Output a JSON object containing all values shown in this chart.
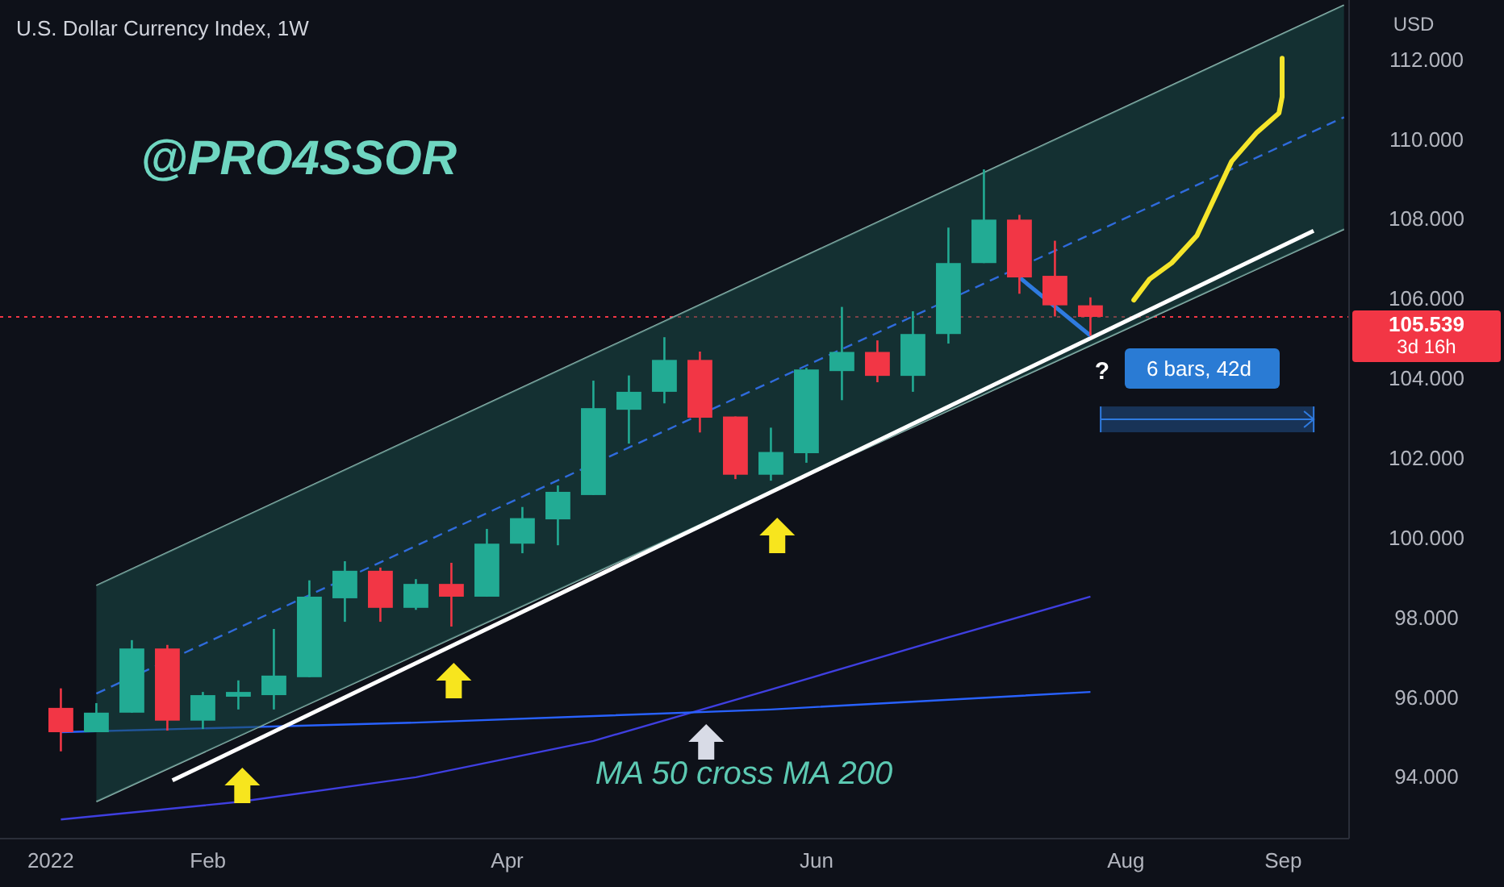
{
  "chart_data": {
    "type": "candlestick",
    "title": "U.S. Dollar Currency Index, 1W",
    "ylabel": "USD",
    "x": [
      "2022-01-03",
      "2022-01-10",
      "2022-01-17",
      "2022-01-24",
      "2022-01-31",
      "2022-02-07",
      "2022-02-14",
      "2022-02-21",
      "2022-02-28",
      "2022-03-07",
      "2022-03-14",
      "2022-03-21",
      "2022-03-28",
      "2022-04-04",
      "2022-04-11",
      "2022-04-18",
      "2022-04-25",
      "2022-05-02",
      "2022-05-09",
      "2022-05-16",
      "2022-05-23",
      "2022-05-30",
      "2022-06-06",
      "2022-06-13",
      "2022-06-20",
      "2022-06-27",
      "2022-07-04",
      "2022-07-11",
      "2022-07-18",
      "2022-07-25"
    ],
    "ohlc": [
      [
        95.73,
        96.22,
        94.64,
        95.12
      ],
      [
        95.12,
        95.85,
        95.12,
        95.61
      ],
      [
        95.61,
        97.43,
        95.61,
        97.22
      ],
      [
        97.22,
        97.31,
        95.16,
        95.41
      ],
      [
        95.41,
        96.13,
        95.2,
        96.05
      ],
      [
        96.01,
        96.42,
        95.69,
        96.13
      ],
      [
        96.05,
        97.71,
        95.69,
        96.54
      ],
      [
        96.5,
        98.93,
        96.5,
        98.52
      ],
      [
        98.48,
        99.41,
        97.89,
        99.17
      ],
      [
        99.17,
        99.25,
        97.89,
        98.24
      ],
      [
        98.24,
        98.96,
        98.19,
        98.84
      ],
      [
        98.84,
        99.37,
        97.77,
        98.52
      ],
      [
        98.52,
        100.22,
        98.52,
        99.85
      ],
      [
        99.85,
        100.77,
        99.61,
        100.49
      ],
      [
        100.46,
        101.31,
        99.81,
        101.15
      ],
      [
        101.07,
        103.94,
        101.07,
        103.25
      ],
      [
        103.21,
        104.07,
        102.36,
        103.66
      ],
      [
        103.66,
        105.03,
        103.37,
        104.46
      ],
      [
        104.46,
        104.67,
        102.64,
        103.01
      ],
      [
        103.04,
        103.04,
        101.47,
        101.58
      ],
      [
        101.58,
        102.76,
        101.43,
        102.15
      ],
      [
        102.12,
        104.26,
        101.88,
        104.22
      ],
      [
        104.18,
        105.79,
        103.45,
        104.66
      ],
      [
        104.66,
        104.95,
        103.9,
        104.06
      ],
      [
        104.06,
        105.68,
        103.66,
        105.11
      ],
      [
        105.11,
        107.78,
        104.87,
        106.89
      ],
      [
        106.89,
        109.24,
        106.89,
        107.98
      ],
      [
        107.98,
        108.1,
        106.12,
        106.53
      ],
      [
        106.57,
        107.45,
        105.55,
        105.83
      ],
      [
        105.83,
        106.03,
        105.07,
        105.539
      ]
    ],
    "colors": [
      "#f23645",
      "#22ab94",
      "#22ab94",
      "#f23645",
      "#22ab94",
      "#22ab94",
      "#22ab94",
      "#22ab94",
      "#22ab94",
      "#f23645",
      "#22ab94",
      "#f23645",
      "#22ab94",
      "#22ab94",
      "#22ab94",
      "#22ab94",
      "#22ab94",
      "#22ab94",
      "#f23645",
      "#f23645",
      "#22ab94",
      "#22ab94",
      "#22ab94",
      "#f23645",
      "#22ab94",
      "#22ab94",
      "#22ab94",
      "#f23645",
      "#f23645",
      "#f23645"
    ],
    "series": [
      {
        "type": "line",
        "color": "#3f3fe0",
        "x": [
          "2022-01-03",
          "2022-02-07",
          "2022-03-14",
          "2022-04-18",
          "2022-05-23",
          "2022-06-27",
          "2022-07-25"
        ],
        "values": [
          92.93,
          93.37,
          93.99,
          94.9,
          96.19,
          97.5,
          98.52
        ]
      },
      {
        "type": "line",
        "color": "#2962ff",
        "x": [
          "2022-01-03",
          "2022-03-14",
          "2022-05-23",
          "2022-07-25"
        ],
        "values": [
          95.12,
          95.36,
          95.69,
          96.13
        ]
      },
      {
        "type": "line",
        "color": "#8fb7b0",
        "x": [
          "2022-01-10",
          "2022-09-13"
        ],
        "values": [
          98.8,
          113.36
        ]
      },
      {
        "type": "line",
        "color": "#8fb7b0",
        "x": [
          "2022-01-10",
          "2022-09-13"
        ],
        "values": [
          93.38,
          107.74
        ]
      },
      {
        "type": "line",
        "color": "#2f6bdc",
        "line_style": "dashed",
        "x": [
          "2022-01-10",
          "2022-09-13"
        ],
        "values": [
          96.09,
          110.55
        ],
        "lower": [
          93.38,
          107.74
        ],
        "upper": [
          98.8,
          113.36
        ]
      },
      {
        "type": "line",
        "color": "#ffffff",
        "x": [
          "2022-01-25",
          "2022-09-07"
        ],
        "values": [
          93.91,
          107.7
        ]
      },
      {
        "type": "line",
        "color": "#2f7be0",
        "x": [
          "2022-07-11",
          "2022-07-25"
        ],
        "values": [
          106.53,
          105.07
        ]
      }
    ],
    "xlim": [
      "2021-12-22",
      "2022-09-14"
    ],
    "xticks": [
      {
        "value": "2022-01-01",
        "label": "2022"
      },
      {
        "value": "2022-02-01",
        "label": "Feb"
      },
      {
        "value": "2022-04-01",
        "label": "Apr"
      },
      {
        "value": "2022-06-01",
        "label": "Jun"
      },
      {
        "value": "2022-08-01",
        "label": "Aug"
      },
      {
        "value": "2022-09-01",
        "label": "Sep"
      }
    ],
    "ylim": [
      92.45,
      113.49
    ],
    "yticks": [
      {
        "value": 94,
        "label": "94.000"
      },
      {
        "value": 96,
        "label": "96.000"
      },
      {
        "value": 98,
        "label": "98.000"
      },
      {
        "value": 100,
        "label": "100.000"
      },
      {
        "value": 102,
        "label": "102.000"
      },
      {
        "value": 104,
        "label": "104.000"
      },
      {
        "value": 106,
        "label": "106.000"
      },
      {
        "value": 108,
        "label": "108.000"
      },
      {
        "value": 110,
        "label": "110.000"
      },
      {
        "value": 112,
        "label": "112.000"
      }
    ],
    "ref_lines": [
      {
        "axis": "y",
        "value": 105.539,
        "label": "105.539",
        "color": "#f23645",
        "line_style": "dotted"
      }
    ],
    "annotations": [
      "@PRO4SSOR",
      "MA 50 cross MA 200",
      "?",
      "6 bars, 42d",
      "3d 16h"
    ]
  }
}
